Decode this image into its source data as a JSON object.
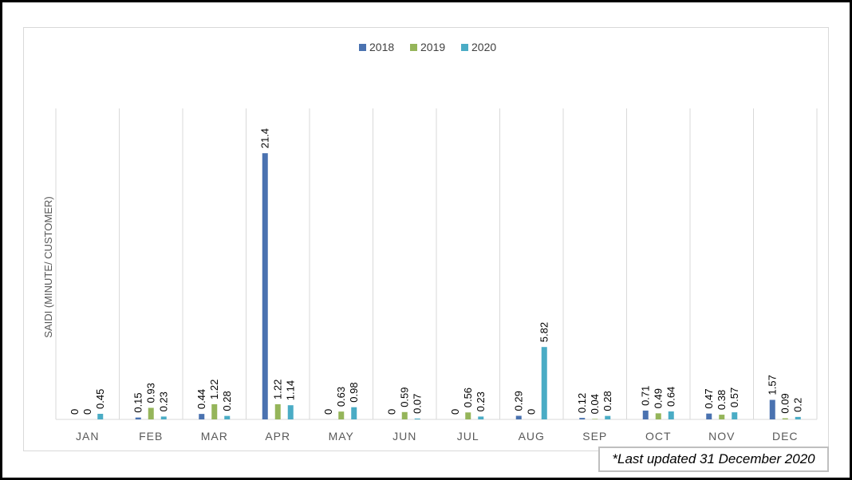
{
  "chart_data": {
    "type": "bar",
    "categories": [
      "JAN",
      "FEB",
      "MAR",
      "APR",
      "MAY",
      "JUN",
      "JUL",
      "AUG",
      "SEP",
      "OCT",
      "NOV",
      "DEC"
    ],
    "series": [
      {
        "name": "2018",
        "color": "#4a72b0",
        "values": [
          0,
          0.15,
          0.44,
          21.4,
          0,
          0,
          0,
          0.29,
          0.12,
          0.71,
          0.47,
          1.57
        ]
      },
      {
        "name": "2019",
        "color": "#95b55a",
        "values": [
          0,
          0.93,
          1.22,
          1.22,
          0.63,
          0.59,
          0.56,
          0,
          0.04,
          0.49,
          0.38,
          0.09
        ]
      },
      {
        "name": "2020",
        "color": "#4aacc5",
        "values": [
          0.45,
          0.23,
          0.28,
          1.14,
          0.98,
          0.07,
          0.23,
          5.82,
          0.28,
          0.64,
          0.57,
          0.2
        ]
      }
    ],
    "data_labels": [
      [
        "0",
        "0.15",
        "0.44",
        "21.4",
        "0",
        "0",
        "0",
        "0.29",
        "0.12",
        "0.71",
        "0.47",
        "1.57"
      ],
      [
        "0",
        "0.93",
        "1.22",
        "1.22",
        "0.63",
        "0.59",
        "0.56",
        "0",
        "0.04",
        "0.49",
        "0.38",
        "0.09"
      ],
      [
        "0.45",
        "0.23",
        "0.28",
        "1.14",
        "0.98",
        "0.07",
        "0.23",
        "5.82",
        "0.28",
        "0.64",
        "0.57",
        "0.2"
      ]
    ],
    "ylabel": "SAIDI (MINUTE/ CUSTOMER)",
    "ylim": [
      0,
      25
    ],
    "legend_position": "top-center",
    "grid": "vertical category separators"
  },
  "footnote": "*Last updated 31 December 2020"
}
